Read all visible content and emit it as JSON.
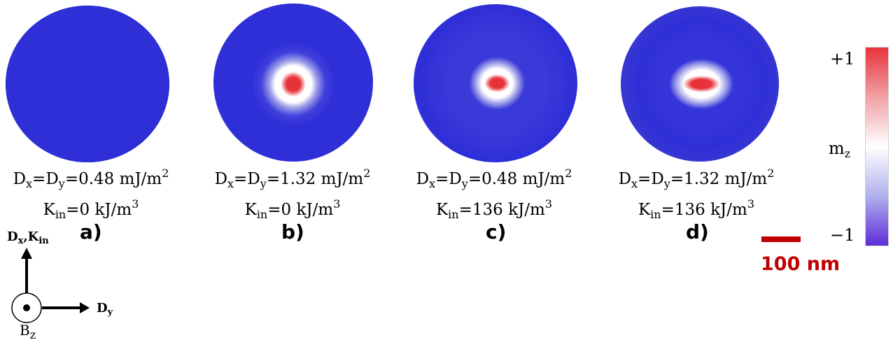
{
  "panels": [
    {
      "dx_dy": "D",
      "d_x_sub": "x",
      "d_y_sub": "y",
      "d_value": "0.48 mJ/m",
      "d_exp": "2",
      "k": "K",
      "k_sub": "in",
      "k_value": "0 kJ/m",
      "k_exp": "3",
      "letter": "a)"
    },
    {
      "dx_dy": "D",
      "d_x_sub": "x",
      "d_y_sub": "y",
      "d_value": "1.32 mJ/m",
      "d_exp": "2",
      "k": "K",
      "k_sub": "in",
      "k_value": "0 kJ/m",
      "k_exp": "3",
      "letter": "b)"
    },
    {
      "dx_dy": "D",
      "d_x_sub": "x",
      "d_y_sub": "y",
      "d_value": "0.48 mJ/m",
      "d_exp": "2",
      "k": "K",
      "k_sub": "in",
      "k_value": "136 kJ/m",
      "k_exp": "3",
      "letter": "c)"
    },
    {
      "dx_dy": "D",
      "d_x_sub": "x",
      "d_y_sub": "y",
      "d_value": "1.32 mJ/m",
      "d_exp": "2",
      "k": "K",
      "k_sub": "in",
      "k_value": "136 kJ/m",
      "k_exp": "3",
      "letter": "d)"
    }
  ],
  "colorbar": {
    "top": "+1",
    "bottom": "−1",
    "label": "m",
    "label_sub": "z",
    "colors": {
      "top": "#e8323a",
      "middle": "#ffffff",
      "bottom": "#5c2ad6"
    }
  },
  "scalebar": {
    "text": "100 nm",
    "color": "#c00000"
  },
  "axes": {
    "up_label": "D",
    "up_sub_1": "x",
    "up_sep": ",",
    "up_k": "K",
    "up_sub_2": "in",
    "right_label": "D",
    "right_sub": "y",
    "out_label": "B",
    "out_sub": "z"
  },
  "colors": {
    "domain": "#2f2fd8",
    "core": "#e8323a"
  }
}
